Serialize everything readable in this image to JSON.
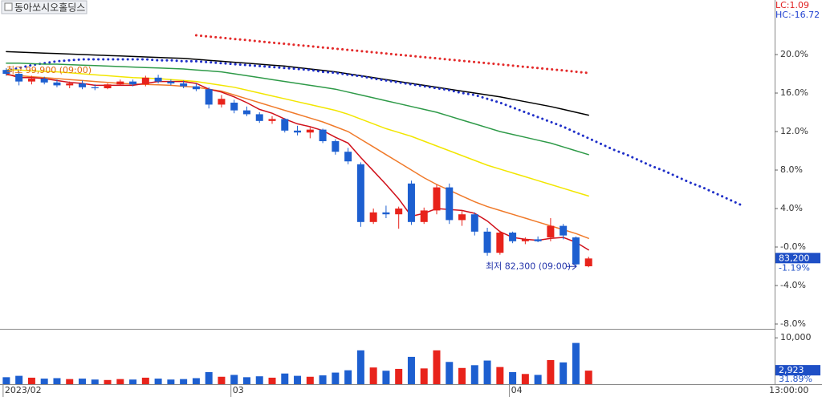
{
  "chart_data": [
    {
      "type": "candlestick",
      "title": "동아쏘시오홀딩스",
      "lc_label": "LC:1.09",
      "hc_label": "HC:-16.72",
      "up_color": "#e8231b",
      "down_color": "#1d5fd0",
      "xlim": [
        -0.5,
        60.7
      ],
      "xticks": [
        {
          "value": 0,
          "label": "2023/02"
        },
        {
          "value": 18,
          "label": "03"
        },
        {
          "value": 40,
          "label": "04"
        }
      ],
      "time_label": "13:00:00",
      "ylim": [
        -8.5,
        25.67
      ],
      "yticks": [
        {
          "value": 20,
          "label": "20.0%"
        },
        {
          "value": 16,
          "label": "16.0%"
        },
        {
          "value": 12,
          "label": "12.0%"
        },
        {
          "value": 8,
          "label": "8.0%"
        },
        {
          "value": 4,
          "label": "4.0%"
        },
        {
          "value": 0,
          "label": "-0.0%"
        },
        {
          "value": -4,
          "label": "-4.0%"
        },
        {
          "value": -8,
          "label": "-8.0%"
        }
      ],
      "open": [
        18.4,
        18.0,
        17.2,
        17.5,
        17.1,
        16.8,
        17.0,
        16.6,
        16.5,
        16.9,
        17.2,
        16.9,
        17.6,
        17.2,
        17.0,
        16.7,
        16.4,
        14.8,
        15.0,
        14.2,
        13.8,
        13.1,
        13.3,
        12.1,
        11.9,
        12.2,
        11.0,
        9.9,
        8.6,
        2.6,
        3.6,
        3.4,
        6.6,
        2.6,
        3.8,
        6.2,
        2.8,
        3.4,
        1.6,
        -0.6,
        1.5,
        0.6,
        0.8,
        1.0,
        2.2,
        1.0,
        -2.0
      ],
      "high": [
        18.6,
        18.3,
        17.8,
        17.7,
        17.4,
        17.2,
        17.3,
        16.9,
        17.0,
        17.4,
        17.4,
        17.8,
        17.9,
        17.4,
        17.3,
        17.0,
        16.6,
        15.8,
        15.3,
        14.6,
        14.0,
        13.6,
        13.4,
        12.6,
        12.4,
        12.3,
        11.2,
        10.3,
        8.8,
        4.0,
        4.3,
        4.2,
        6.9,
        4.1,
        6.5,
        6.6,
        3.8,
        3.6,
        2.0,
        1.7,
        1.6,
        1.0,
        1.1,
        3.0,
        2.4,
        1.1,
        -1.0
      ],
      "low": [
        17.8,
        16.8,
        16.9,
        16.9,
        16.6,
        16.5,
        16.4,
        16.3,
        16.4,
        16.8,
        16.7,
        16.7,
        17.0,
        16.8,
        16.5,
        16.2,
        14.4,
        14.5,
        13.9,
        13.6,
        12.9,
        12.8,
        11.9,
        11.6,
        11.3,
        10.8,
        9.6,
        8.6,
        2.1,
        2.4,
        3.0,
        1.9,
        2.3,
        2.4,
        3.4,
        2.4,
        2.2,
        1.2,
        -0.9,
        -0.8,
        0.4,
        0.3,
        0.5,
        0.6,
        0.8,
        -2.1,
        -2.1
      ],
      "close": [
        18.0,
        17.2,
        17.5,
        17.1,
        16.8,
        17.0,
        16.6,
        16.5,
        16.9,
        17.2,
        16.9,
        17.6,
        17.2,
        17.0,
        16.7,
        16.4,
        14.8,
        15.4,
        14.2,
        13.8,
        13.1,
        13.3,
        12.1,
        11.9,
        12.2,
        11.0,
        9.9,
        8.9,
        2.6,
        3.6,
        3.4,
        4.0,
        2.6,
        3.8,
        6.2,
        2.8,
        3.4,
        1.6,
        -0.6,
        1.5,
        0.6,
        0.8,
        0.6,
        2.2,
        1.2,
        -1.8,
        -1.19
      ],
      "lines": [
        {
          "color": "#000000",
          "style": "solid",
          "values": [
            20.3,
            20.25,
            20.2,
            20.15,
            20.1,
            20.05,
            20.0,
            19.95,
            19.9,
            19.85,
            19.8,
            19.75,
            19.7,
            19.65,
            19.6,
            19.5,
            19.4,
            19.3,
            19.2,
            19.1,
            19.0,
            18.9,
            18.8,
            18.65,
            18.5,
            18.35,
            18.2,
            18.0,
            17.8,
            17.6,
            17.4,
            17.2,
            17.0,
            16.8,
            16.6,
            16.4,
            16.2,
            16.0,
            15.8,
            15.6,
            15.35,
            15.1,
            14.85,
            14.6,
            14.3,
            14.0,
            13.7
          ]
        },
        {
          "color": "#1f2fc8",
          "style": "dotted",
          "values": [
            18.3,
            18.6,
            18.9,
            19.1,
            19.3,
            19.4,
            19.5,
            19.5,
            19.5,
            19.5,
            19.5,
            19.5,
            19.4,
            19.4,
            19.3,
            19.3,
            19.2,
            19.1,
            19.0,
            18.9,
            18.8,
            18.7,
            18.6,
            18.5,
            18.4,
            18.2,
            18.1,
            17.9,
            17.75,
            17.5,
            17.3,
            17.1,
            16.9,
            16.7,
            16.5,
            16.3,
            16.0,
            15.8,
            15.4,
            15.0,
            14.5,
            14.0,
            13.5,
            13.0,
            12.5,
            11.9,
            11.3,
            10.7,
            10.1,
            9.6,
            9.0,
            8.4,
            7.9,
            7.3,
            6.7,
            6.2,
            5.6,
            5.0,
            4.4
          ]
        },
        {
          "color": "#e42a2a",
          "style": "dotted",
          "values": [
            null,
            null,
            null,
            null,
            null,
            null,
            null,
            null,
            null,
            null,
            null,
            null,
            null,
            null,
            null,
            22.0,
            21.87,
            21.75,
            21.62,
            21.5,
            21.37,
            21.24,
            21.12,
            20.99,
            20.87,
            20.74,
            20.61,
            20.49,
            20.36,
            20.24,
            20.11,
            19.98,
            19.86,
            19.73,
            19.61,
            19.48,
            19.35,
            19.23,
            19.1,
            18.98,
            18.85,
            18.72,
            18.6,
            18.47,
            18.35,
            18.22,
            18.09
          ]
        },
        {
          "color": "#2e9a48",
          "style": "solid",
          "values": [
            19.1,
            19.1,
            19.05,
            19.0,
            19.0,
            18.95,
            18.9,
            18.85,
            18.8,
            18.75,
            18.7,
            18.65,
            18.6,
            18.55,
            18.5,
            18.4,
            18.3,
            18.2,
            18.0,
            17.8,
            17.6,
            17.4,
            17.2,
            17.0,
            16.8,
            16.6,
            16.4,
            16.1,
            15.8,
            15.5,
            15.2,
            14.9,
            14.6,
            14.3,
            14.0,
            13.6,
            13.2,
            12.8,
            12.4,
            12.0,
            11.7,
            11.4,
            11.1,
            10.8,
            10.4,
            10.0,
            9.6
          ]
        },
        {
          "color": "#f2e600",
          "style": "solid",
          "values": [
            18.4,
            18.4,
            18.3,
            18.25,
            18.2,
            18.1,
            18.0,
            17.9,
            17.8,
            17.7,
            17.6,
            17.55,
            17.5,
            17.4,
            17.3,
            17.2,
            17.0,
            16.8,
            16.6,
            16.3,
            16.0,
            15.7,
            15.4,
            15.1,
            14.8,
            14.5,
            14.2,
            13.8,
            13.3,
            12.8,
            12.3,
            11.9,
            11.5,
            11.0,
            10.5,
            10.0,
            9.5,
            9.0,
            8.5,
            8.1,
            7.7,
            7.3,
            6.9,
            6.5,
            6.1,
            5.7,
            5.3
          ]
        },
        {
          "color": "#f07a2a",
          "style": "solid",
          "values": [
            17.9,
            17.8,
            17.7,
            17.6,
            17.5,
            17.4,
            17.3,
            17.2,
            17.1,
            17.0,
            16.95,
            16.9,
            16.85,
            16.8,
            16.7,
            16.6,
            16.4,
            16.2,
            15.8,
            15.4,
            15.0,
            14.6,
            14.2,
            13.8,
            13.4,
            13.0,
            12.5,
            12.0,
            11.2,
            10.4,
            9.6,
            8.8,
            8.0,
            7.2,
            6.5,
            5.9,
            5.3,
            4.7,
            4.2,
            3.8,
            3.4,
            3.0,
            2.6,
            2.2,
            1.8,
            1.4,
            0.9
          ]
        },
        {
          "color": "#d0101a",
          "style": "solid",
          "values": [
            18.0,
            17.6,
            17.6,
            17.5,
            17.3,
            17.1,
            17.0,
            16.8,
            16.8,
            16.8,
            16.8,
            17.0,
            17.2,
            17.2,
            17.2,
            17.0,
            16.4,
            16.1,
            15.6,
            15.0,
            14.3,
            13.9,
            13.3,
            12.8,
            12.5,
            12.1,
            11.4,
            10.8,
            9.3,
            7.9,
            6.5,
            5.0,
            3.2,
            3.5,
            4.0,
            3.9,
            3.8,
            3.5,
            2.7,
            1.6,
            1.0,
            0.8,
            0.7,
            0.9,
            1.0,
            0.5,
            -0.3
          ]
        }
      ],
      "high_annotation": "최고 99,900 (09:00)",
      "low_annotation": "최저 82,300 (09:00)",
      "price_label": "83,200",
      "change_label": "-1.19%"
    },
    {
      "type": "bar",
      "ylim": [
        0,
        11600
      ],
      "yticks": [
        {
          "value": 10000,
          "label": "10,000"
        }
      ],
      "values": [
        1500,
        1800,
        1400,
        1200,
        1300,
        1100,
        1200,
        1000,
        900,
        1100,
        1000,
        1400,
        1200,
        1000,
        1100,
        1300,
        2600,
        1600,
        2000,
        1500,
        1700,
        1400,
        2300,
        1800,
        1600,
        1900,
        2500,
        3000,
        7300,
        3600,
        2900,
        3300,
        5900,
        3400,
        7300,
        4800,
        3500,
        4100,
        5100,
        3700,
        2600,
        2200,
        2000,
        5200,
        4700,
        8900,
        2923
      ],
      "current_label": "2,923",
      "ratio_label": "31.89%"
    }
  ]
}
